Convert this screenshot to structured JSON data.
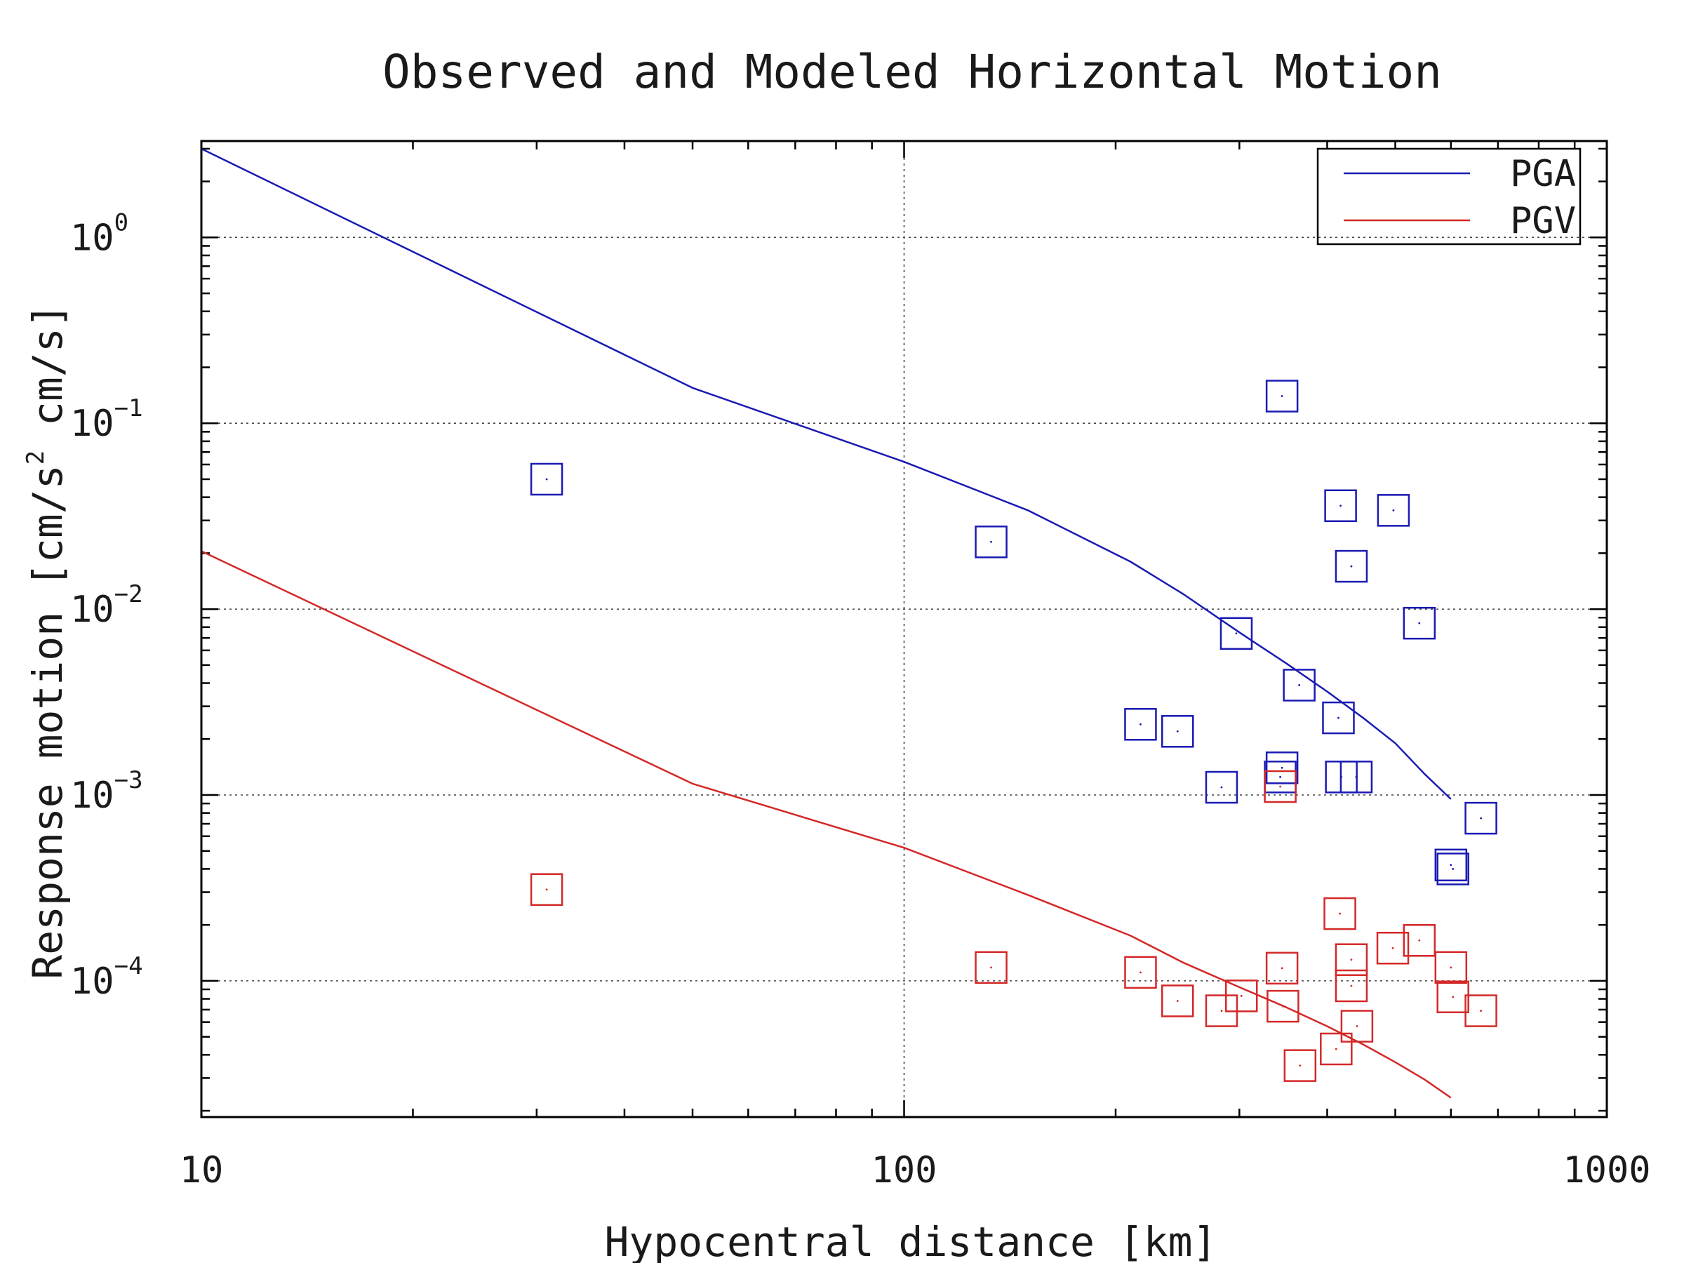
{
  "chart_data": {
    "type": "scatter",
    "title": "Observed and Modeled Horizontal Motion",
    "xlabel": "Hypocentral distance [km]",
    "ylabel": {
      "prefix": "Response motion  [cm/s",
      "sup": "2",
      "suffix": "  cm/s]"
    },
    "xscale": "log",
    "yscale": "log",
    "xlim": [
      10,
      1000
    ],
    "ylim": [
      1.85e-05,
      3.3
    ],
    "x_ticks": [
      {
        "value": 10,
        "label": "10"
      },
      {
        "value": 100,
        "label": "100"
      },
      {
        "value": 1000,
        "label": "1000"
      }
    ],
    "y_ticks": [
      {
        "value": 1,
        "base": "10",
        "exp": "0"
      },
      {
        "value": 0.1,
        "base": "10",
        "exp": "−1"
      },
      {
        "value": 0.01,
        "base": "10",
        "exp": "−2"
      },
      {
        "value": 0.001,
        "base": "10",
        "exp": "−3"
      },
      {
        "value": 0.0001,
        "base": "10",
        "exp": "−4"
      }
    ],
    "grid": true,
    "legend_position": "top-right",
    "series": [
      {
        "name": "PGA",
        "color": "#1a1ab4",
        "model": {
          "x": [
            10,
            50,
            100,
            150,
            210,
            250,
            300,
            350,
            400,
            450,
            500,
            550,
            600
          ],
          "y": [
            3.0,
            0.155,
            0.062,
            0.034,
            0.018,
            0.012,
            0.0075,
            0.0051,
            0.0036,
            0.0026,
            0.0019,
            0.0013,
            0.00095
          ]
        },
        "observed": {
          "x": [
            31,
            345,
            418,
            497,
            133,
            433,
            541,
            297,
            365,
            217,
            245,
            415,
            283,
            345,
            343,
            419,
            440,
            662,
            600,
            604
          ],
          "y": [
            0.05,
            0.14,
            0.036,
            0.034,
            0.023,
            0.017,
            0.0084,
            0.0074,
            0.0039,
            0.0024,
            0.0022,
            0.0026,
            0.0011,
            0.0014,
            0.00125,
            0.00125,
            0.00125,
            0.00075,
            0.00042,
            0.0004
          ]
        }
      },
      {
        "name": "PGV",
        "color": "#d42828",
        "model": {
          "x": [
            10,
            50,
            100,
            150,
            210,
            250,
            300,
            350,
            400,
            450,
            500,
            550,
            600
          ],
          "y": [
            0.0205,
            0.00115,
            0.00052,
            0.00029,
            0.000175,
            0.000125,
            9.25e-05,
            7.2e-05,
            5.7e-05,
            4.55e-05,
            3.65e-05,
            2.95e-05,
            2.35e-05
          ]
        },
        "observed": {
          "x": [
            31,
            343,
            417,
            433,
            496,
            541,
            600,
            133,
            217,
            345,
            433,
            245,
            302,
            346,
            283,
            604,
            662,
            441,
            412,
            366
          ],
          "y": [
            0.00031,
            0.00111,
            0.00023,
            0.00013,
            0.00015,
            0.000165,
            0.000118,
            0.000118,
            0.000111,
            0.000117,
            9.4e-05,
            7.8e-05,
            8.3e-05,
            7.3e-05,
            6.9e-05,
            8.2e-05,
            6.9e-05,
            5.7e-05,
            4.3e-05,
            3.5e-05
          ]
        }
      }
    ]
  }
}
